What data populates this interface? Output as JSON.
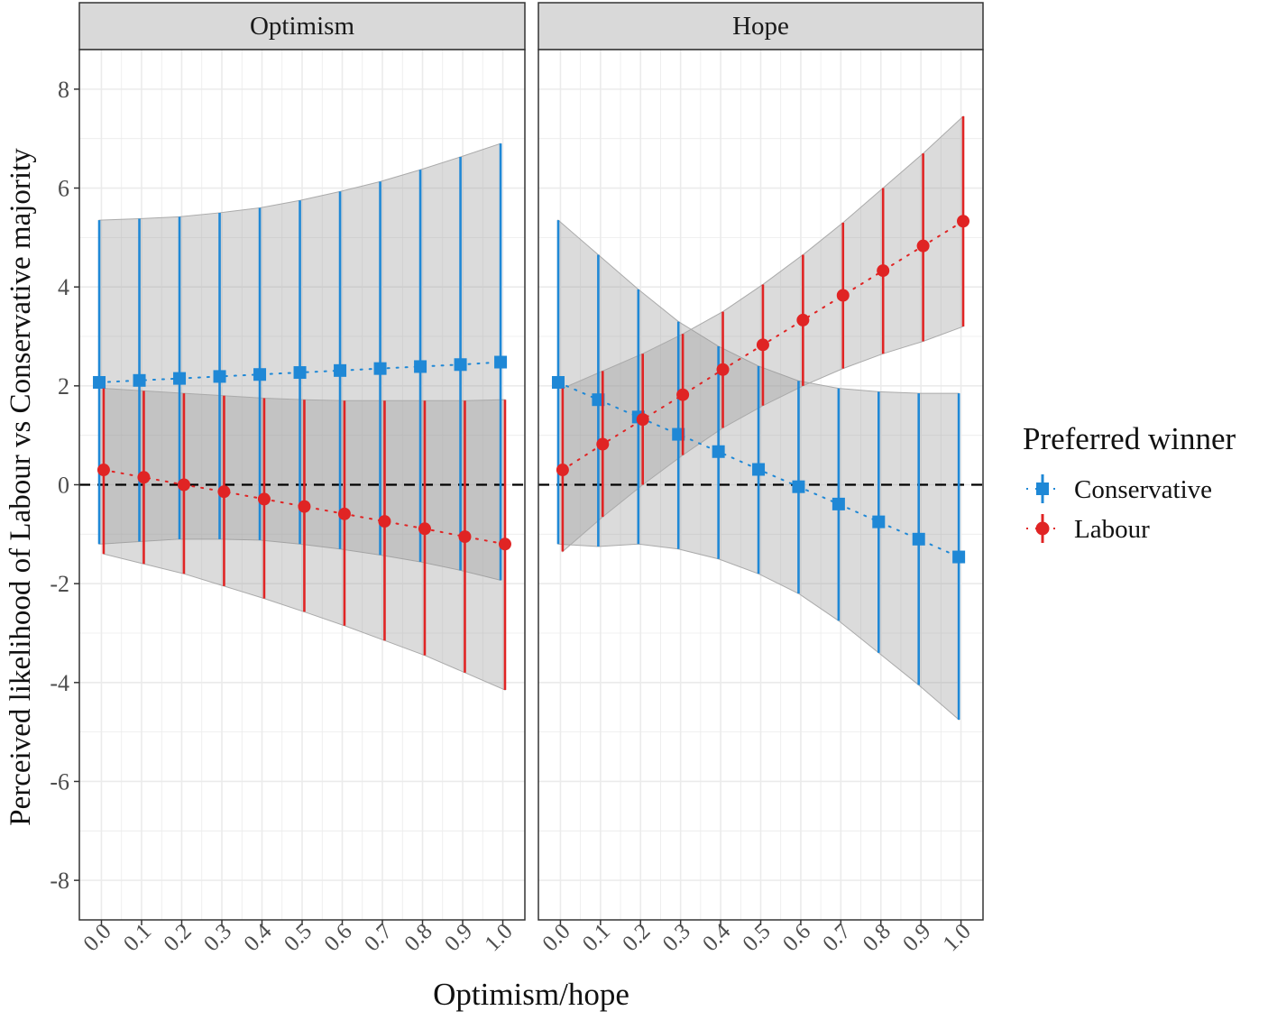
{
  "chart_data": {
    "type": "line",
    "subtype": "faceted point-range with confidence ribbons",
    "ylabel": "Perceived likelihood of Labour vs Conservative majority",
    "xlabel": "Optimism/hope",
    "ylim": [
      -8.8,
      8.8
    ],
    "yticks": [
      8,
      6,
      4,
      2,
      0,
      -2,
      -4,
      -6,
      -8
    ],
    "ytick_labels": [
      "8",
      "6",
      "4",
      "2",
      "0",
      "-2",
      "-4",
      "-6",
      "-8"
    ],
    "x": [
      0.0,
      0.1,
      0.2,
      0.3,
      0.4,
      0.5,
      0.6,
      0.7,
      0.8,
      0.9,
      1.0
    ],
    "xtick_labels": [
      "0.0",
      "0.1",
      "0.2",
      "0.3",
      "0.4",
      "0.5",
      "0.6",
      "0.7",
      "0.8",
      "0.9",
      "1.0"
    ],
    "reference_line": {
      "y": 0,
      "style": "dashed"
    },
    "grid": true,
    "legend": {
      "title": "Preferred winner",
      "placement": "right",
      "entries": [
        {
          "label": "Conservative",
          "color": "#1f88d6",
          "marker": "square"
        },
        {
          "label": "Labour",
          "color": "#e02424",
          "marker": "circle"
        }
      ]
    },
    "panels": [
      {
        "title": "Optimism",
        "series": [
          {
            "name": "Conservative",
            "values": [
              2.07,
              2.11,
              2.15,
              2.19,
              2.23,
              2.27,
              2.31,
              2.35,
              2.39,
              2.43,
              2.48
            ],
            "upper": [
              5.35,
              5.38,
              5.42,
              5.5,
              5.6,
              5.75,
              5.93,
              6.13,
              6.37,
              6.63,
              6.9
            ],
            "lower": [
              -1.2,
              -1.15,
              -1.1,
              -1.1,
              -1.12,
              -1.2,
              -1.3,
              -1.42,
              -1.56,
              -1.73,
              -1.93
            ]
          },
          {
            "name": "Labour",
            "values": [
              0.3,
              0.15,
              0.0,
              -0.14,
              -0.29,
              -0.44,
              -0.59,
              -0.74,
              -0.89,
              -1.05,
              -1.2
            ],
            "upper": [
              1.95,
              1.9,
              1.85,
              1.8,
              1.75,
              1.72,
              1.7,
              1.7,
              1.7,
              1.7,
              1.72
            ],
            "lower": [
              -1.4,
              -1.6,
              -1.8,
              -2.05,
              -2.3,
              -2.57,
              -2.85,
              -3.15,
              -3.45,
              -3.8,
              -4.15
            ]
          }
        ]
      },
      {
        "title": "Hope",
        "series": [
          {
            "name": "Conservative",
            "values": [
              2.07,
              1.72,
              1.37,
              1.02,
              0.67,
              0.31,
              -0.04,
              -0.39,
              -0.75,
              -1.1,
              -1.46
            ],
            "upper": [
              5.35,
              4.65,
              3.95,
              3.3,
              2.8,
              2.4,
              2.1,
              1.95,
              1.88,
              1.85,
              1.85
            ],
            "lower": [
              -1.2,
              -1.25,
              -1.2,
              -1.3,
              -1.5,
              -1.8,
              -2.2,
              -2.75,
              -3.4,
              -4.05,
              -4.75
            ]
          },
          {
            "name": "Labour",
            "values": [
              0.3,
              0.82,
              1.32,
              1.82,
              2.33,
              2.83,
              3.33,
              3.83,
              4.33,
              4.83,
              5.33
            ],
            "upper": [
              1.95,
              2.3,
              2.65,
              3.05,
              3.5,
              4.05,
              4.65,
              5.3,
              6.0,
              6.7,
              7.45
            ],
            "lower": [
              -1.35,
              -0.65,
              0.0,
              0.6,
              1.15,
              1.6,
              2.0,
              2.35,
              2.65,
              2.9,
              3.2
            ]
          }
        ]
      }
    ]
  }
}
